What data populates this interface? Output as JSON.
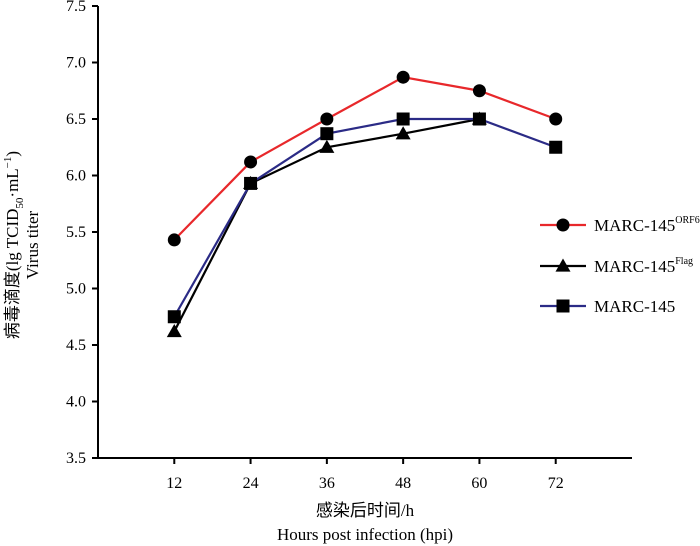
{
  "chart_data": {
    "type": "line",
    "title": "",
    "xlabel_cn": "感染后时间/h",
    "xlabel_en": "Hours post infection (hpi)",
    "ylabel_cn_main": "病毒滴度(lg TCID",
    "ylabel_cn_sub": "50",
    "ylabel_cn_unit": "·mL",
    "ylabel_cn_exp": "−1",
    "ylabel_cn_close": ")",
    "ylabel_en": "Virus titer",
    "x": [
      12,
      24,
      36,
      48,
      60,
      72
    ],
    "x_tick_labels": [
      "12",
      "24",
      "36",
      "48",
      "60",
      "72"
    ],
    "xlim": [
      0,
      84
    ],
    "ylim": [
      3.5,
      7.5
    ],
    "y_ticks": [
      "3.5",
      "4.0",
      "4.5",
      "5.0",
      "5.5",
      "6.0",
      "6.5",
      "7.0",
      "7.5"
    ],
    "grid": false,
    "legend_position": "right",
    "series": [
      {
        "name": "MARC-145",
        "name_sup": "ORF6",
        "color": "#e8282b",
        "marker": "circle",
        "values": [
          5.43,
          6.12,
          6.5,
          6.87,
          6.75,
          6.5
        ]
      },
      {
        "name": "MARC-145",
        "name_sup": "Flag",
        "color": "#000000",
        "marker": "triangle",
        "values": [
          4.62,
          5.93,
          6.25,
          6.37,
          6.5,
          null
        ]
      },
      {
        "name": "MARC-145",
        "name_sup": "",
        "color": "#2b2b86",
        "marker": "square",
        "values": [
          4.75,
          5.93,
          6.37,
          6.5,
          6.5,
          6.25
        ]
      }
    ]
  }
}
